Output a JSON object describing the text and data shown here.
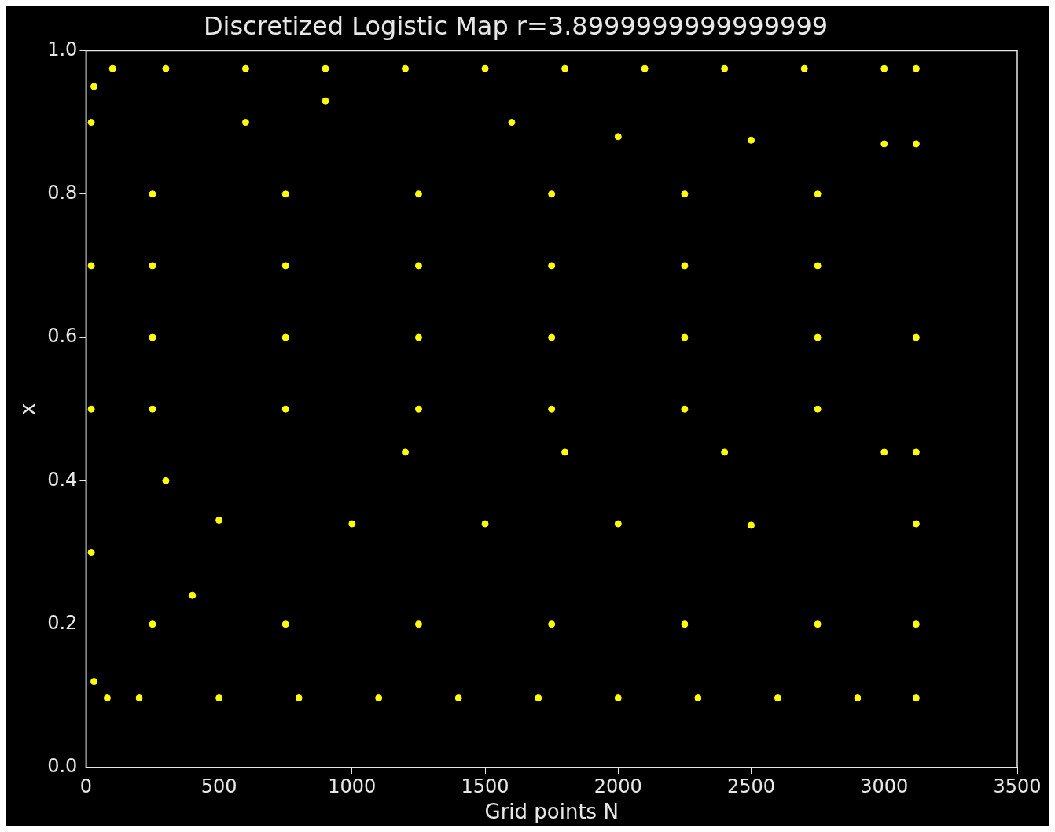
{
  "chart_data": {
    "type": "scatter",
    "title": "Discretized Logistic Map r=3.8999999999999999",
    "xlabel": "Grid points N",
    "ylabel": "x",
    "xlim": [
      0,
      3500
    ],
    "ylim": [
      0,
      1
    ],
    "xticks": [
      0,
      500,
      1000,
      1500,
      2000,
      2500,
      3000,
      3500
    ],
    "yticks": [
      {
        "value": 0,
        "label": "0.0"
      },
      0.2,
      0.4,
      0.6,
      0.8,
      {
        "value": 1,
        "label": "1.0"
      }
    ],
    "grid": false,
    "legend": false,
    "marker": "circle",
    "series": [
      {
        "color": "#ffff00",
        "x": [
          30,
          100,
          300,
          600,
          900,
          1200,
          1500,
          1800,
          2100,
          2400,
          2700,
          3000,
          3120,
          80,
          200,
          500,
          800,
          1100,
          1400,
          1700,
          2000,
          2300,
          2600,
          2900,
          3120,
          20,
          20,
          20,
          20,
          30,
          3120,
          3120,
          3120,
          3120,
          3120,
          2000,
          2500,
          3000,
          500,
          1000,
          1500,
          2000,
          2500,
          1200,
          1800,
          2400,
          3000,
          250,
          250,
          250,
          250,
          250,
          750,
          750,
          750,
          750,
          750,
          1250,
          1250,
          1250,
          1250,
          1250,
          1750,
          1750,
          1750,
          1750,
          1750,
          2250,
          2250,
          2250,
          2250,
          2250,
          2750,
          2750,
          2750,
          2750,
          2750,
          400,
          300,
          600,
          900,
          1600
        ],
        "values": [
          0.95,
          0.975,
          0.975,
          0.975,
          0.975,
          0.975,
          0.975,
          0.975,
          0.975,
          0.975,
          0.975,
          0.975,
          0.975,
          0.097,
          0.097,
          0.097,
          0.097,
          0.097,
          0.097,
          0.097,
          0.097,
          0.097,
          0.097,
          0.097,
          0.097,
          0.9,
          0.7,
          0.5,
          0.3,
          0.12,
          0.2,
          0.34,
          0.44,
          0.6,
          0.87,
          0.88,
          0.875,
          0.87,
          0.345,
          0.34,
          0.34,
          0.34,
          0.338,
          0.44,
          0.44,
          0.44,
          0.44,
          0.2,
          0.5,
          0.7,
          0.8,
          0.6,
          0.2,
          0.5,
          0.7,
          0.8,
          0.6,
          0.2,
          0.5,
          0.7,
          0.8,
          0.6,
          0.2,
          0.5,
          0.7,
          0.8,
          0.6,
          0.2,
          0.5,
          0.7,
          0.8,
          0.6,
          0.2,
          0.5,
          0.7,
          0.8,
          0.6,
          0.24,
          0.4,
          0.9,
          0.93,
          0.9
        ]
      }
    ]
  }
}
